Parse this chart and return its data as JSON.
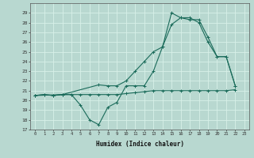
{
  "title": "",
  "xlabel": "Humidex (Indice chaleur)",
  "ylabel": "",
  "bg_color": "#b8d8d0",
  "grid_color": "#d8f0e8",
  "line_color": "#1a6b5a",
  "ylim": [
    17,
    30
  ],
  "xlim": [
    -0.5,
    23.5
  ],
  "yticks": [
    17,
    18,
    19,
    20,
    21,
    22,
    23,
    24,
    25,
    26,
    27,
    28,
    29
  ],
  "xticks": [
    0,
    1,
    2,
    3,
    4,
    5,
    6,
    7,
    8,
    9,
    10,
    11,
    12,
    13,
    14,
    15,
    16,
    17,
    18,
    19,
    20,
    21,
    22,
    23
  ],
  "line1": {
    "x": [
      0,
      1,
      2,
      3,
      4,
      5,
      6,
      7,
      8,
      9,
      10,
      11,
      12,
      13,
      14,
      15,
      16,
      17,
      18,
      19,
      20,
      21,
      22
    ],
    "y": [
      20.5,
      20.6,
      20.5,
      20.6,
      20.6,
      20.6,
      20.6,
      20.6,
      20.6,
      20.6,
      20.7,
      20.8,
      20.9,
      21.0,
      21.0,
      21.0,
      21.0,
      21.0,
      21.0,
      21.0,
      21.0,
      21.0,
      21.1
    ]
  },
  "line2": {
    "x": [
      0,
      1,
      2,
      3,
      4,
      5,
      6,
      7,
      8,
      9,
      10,
      11,
      12,
      13,
      14,
      15,
      16,
      17,
      18,
      19,
      20,
      21,
      22
    ],
    "y": [
      20.5,
      20.6,
      20.5,
      20.6,
      20.6,
      19.5,
      18.0,
      17.5,
      19.3,
      19.8,
      21.5,
      21.5,
      21.5,
      23.0,
      25.5,
      27.8,
      28.5,
      28.3,
      28.3,
      26.5,
      24.5,
      24.5,
      21.5
    ]
  },
  "line3": {
    "x": [
      0,
      3,
      7,
      8,
      9,
      10,
      11,
      12,
      13,
      14,
      15,
      16,
      17,
      18,
      19,
      20,
      21,
      22
    ],
    "y": [
      20.5,
      20.6,
      21.6,
      21.5,
      21.5,
      22.0,
      23.0,
      24.0,
      25.0,
      25.5,
      29.0,
      28.5,
      28.5,
      28.0,
      26.0,
      24.5,
      24.5,
      21.5
    ]
  }
}
